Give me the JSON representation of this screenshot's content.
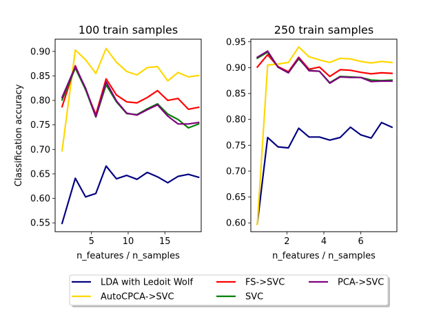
{
  "figure": {
    "background": "#ffffff"
  },
  "chart_data": [
    {
      "type": "line",
      "title": "100 train samples",
      "xlabel": "n_features / n_samples",
      "ylabel": "Classification accuracy",
      "xlim": [
        0.05,
        19.95
      ],
      "ylim": [
        0.532,
        0.925
      ],
      "xticks": [
        5,
        10,
        15
      ],
      "xtick_labels": [
        "5",
        "10",
        "15"
      ],
      "yticks": [
        0.55,
        0.6,
        0.65,
        0.7,
        0.75,
        0.8,
        0.85,
        0.9
      ],
      "ytick_labels": [
        "0.55",
        "0.60",
        "0.65",
        "0.70",
        "0.75",
        "0.80",
        "0.85",
        "0.90"
      ],
      "x": [
        1.0,
        2.8,
        4.2,
        5.6,
        7.0,
        8.4,
        9.8,
        11.2,
        12.6,
        14.0,
        15.4,
        16.8,
        18.2,
        19.6
      ],
      "series": [
        {
          "name": "LDA with Ledoit Wolf",
          "color": "#000080",
          "values": [
            0.549,
            0.641,
            0.603,
            0.61,
            0.666,
            0.64,
            0.647,
            0.639,
            0.653,
            0.644,
            0.632,
            0.645,
            0.649,
            0.643
          ]
        },
        {
          "name": "AutoCPCA->SVC",
          "color": "#ffd700",
          "values": [
            0.697,
            0.903,
            0.883,
            0.855,
            0.906,
            0.878,
            0.859,
            0.852,
            0.867,
            0.869,
            0.84,
            0.857,
            0.848,
            0.851
          ]
        },
        {
          "name": "FS->SVC",
          "color": "#ff0000",
          "values": [
            0.787,
            0.871,
            0.822,
            0.771,
            0.844,
            0.811,
            0.797,
            0.795,
            0.806,
            0.82,
            0.8,
            0.804,
            0.782,
            0.786
          ]
        },
        {
          "name": "SVC",
          "color": "#008000",
          "values": [
            0.801,
            0.866,
            0.822,
            0.766,
            0.832,
            0.797,
            0.773,
            0.771,
            0.783,
            0.793,
            0.772,
            0.761,
            0.744,
            0.752
          ]
        },
        {
          "name": "PCA->SVC",
          "color": "#800080",
          "values": [
            0.806,
            0.869,
            0.825,
            0.767,
            0.838,
            0.799,
            0.774,
            0.77,
            0.781,
            0.791,
            0.768,
            0.752,
            0.752,
            0.755
          ]
        }
      ]
    },
    {
      "type": "line",
      "title": "250 train samples",
      "xlabel": "n_features / n_samples",
      "ylabel": "",
      "xlim": [
        0.05,
        7.95
      ],
      "ylim": [
        0.583,
        0.955
      ],
      "xticks": [
        2,
        4,
        6
      ],
      "xtick_labels": [
        "2",
        "4",
        "6"
      ],
      "yticks": [
        0.6,
        0.65,
        0.7,
        0.75,
        0.8,
        0.85,
        0.9,
        0.95
      ],
      "ytick_labels": [
        "0.60",
        "0.65",
        "0.70",
        "0.75",
        "0.80",
        "0.85",
        "0.90",
        "0.95"
      ],
      "x": [
        0.4,
        0.96,
        1.52,
        2.08,
        2.64,
        3.2,
        3.76,
        4.32,
        4.88,
        5.44,
        6.0,
        6.56,
        7.12,
        7.68
      ],
      "series": [
        {
          "name": "LDA with Ledoit Wolf",
          "color": "#000080",
          "values": [
            0.598,
            0.765,
            0.747,
            0.745,
            0.783,
            0.766,
            0.766,
            0.76,
            0.765,
            0.785,
            0.77,
            0.764,
            0.794,
            0.785
          ]
        },
        {
          "name": "AutoCPCA->SVC",
          "color": "#ffd700",
          "values": [
            0.597,
            0.905,
            0.907,
            0.91,
            0.94,
            0.921,
            0.915,
            0.91,
            0.918,
            0.917,
            0.912,
            0.909,
            0.912,
            0.91
          ]
        },
        {
          "name": "FS->SVC",
          "color": "#ff0000",
          "values": [
            0.901,
            0.925,
            0.902,
            0.892,
            0.92,
            0.897,
            0.901,
            0.883,
            0.896,
            0.895,
            0.891,
            0.888,
            0.89,
            0.889
          ]
        },
        {
          "name": "SVC",
          "color": "#008000",
          "values": [
            0.918,
            0.93,
            0.901,
            0.89,
            0.917,
            0.895,
            0.893,
            0.871,
            0.883,
            0.882,
            0.881,
            0.876,
            0.875,
            0.876
          ]
        },
        {
          "name": "PCA->SVC",
          "color": "#800080",
          "values": [
            0.92,
            0.932,
            0.901,
            0.89,
            0.919,
            0.894,
            0.893,
            0.87,
            0.882,
            0.881,
            0.881,
            0.873,
            0.874,
            0.874
          ]
        }
      ]
    }
  ],
  "legend": {
    "placement": "bottom-center",
    "columns": 3,
    "entries": [
      {
        "label": "LDA with Ledoit Wolf",
        "color": "#000080"
      },
      {
        "label": "AutoCPCA->SVC",
        "color": "#ffd700"
      },
      {
        "label": "FS->SVC",
        "color": "#ff0000"
      },
      {
        "label": "SVC",
        "color": "#008000"
      },
      {
        "label": "PCA->SVC",
        "color": "#800080"
      }
    ]
  }
}
